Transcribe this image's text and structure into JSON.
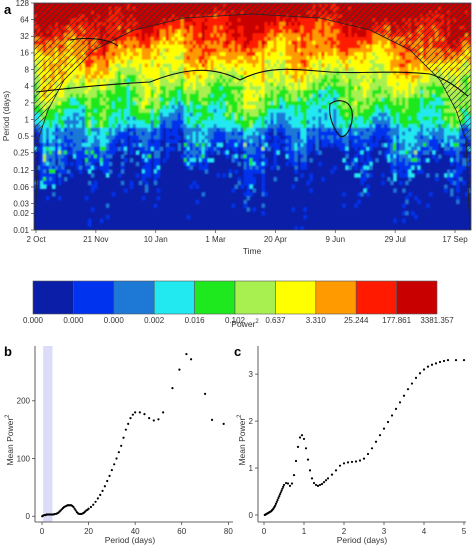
{
  "chart_data": [
    {
      "panel": "a",
      "type": "heatmap",
      "xlabel": "Time",
      "ylabel": "Period (days)",
      "x_ticks": [
        "2 Oct",
        "21 Nov",
        "10 Jan",
        "1 Mar",
        "20 Apr",
        "9 Jun",
        "29 Jul",
        "17 Sep"
      ],
      "y_ticks": [
        "0.01",
        "0.02",
        "0.03",
        "0.06",
        "0.12",
        "0.25",
        "0.5",
        "1",
        "2",
        "4",
        "8",
        "16",
        "32",
        "64",
        "128"
      ],
      "scale": "log2",
      "ylim": [
        0.01,
        128
      ],
      "cone_of_influence": "hatched"
    },
    {
      "type": "colorbar",
      "label": "Power",
      "label_superscript": "2",
      "colors": [
        "#0a1ea8",
        "#0033ee",
        "#1e78d6",
        "#22e8f0",
        "#1ee81e",
        "#a8f050",
        "#ffff00",
        "#ff9a00",
        "#ff1a00",
        "#c80000"
      ],
      "tick_labels": [
        "0.000",
        "0.000",
        "0.000",
        "0.002",
        "0.016",
        "0.102",
        "0.637",
        "3.310",
        "25.244",
        "177.861",
        "3381.357"
      ]
    },
    {
      "panel": "b",
      "type": "scatter",
      "xlabel": "Period (days)",
      "ylabel": "Mean Power",
      "ylabel_superscript": "2",
      "xlim": [
        -3,
        82
      ],
      "ylim": [
        -10,
        295
      ],
      "x_ticks": [
        "0",
        "20",
        "40",
        "60",
        "80"
      ],
      "y_ticks": [
        "0",
        "100",
        "200"
      ],
      "shaded_region": [
        0.5,
        4.5
      ],
      "x": [
        0.1,
        0.5,
        1,
        1.5,
        2,
        2.5,
        3,
        3.5,
        4,
        4.5,
        5,
        5.5,
        6,
        6.5,
        7,
        7.5,
        8,
        8.5,
        9,
        9.5,
        10,
        10.5,
        11,
        11.5,
        12,
        12.5,
        13,
        13.5,
        14,
        14.5,
        15,
        15.5,
        16,
        16.5,
        17,
        17.5,
        18,
        18.5,
        19,
        19.5,
        20,
        21,
        22,
        23,
        24,
        25,
        26,
        27,
        28,
        29,
        30,
        31,
        32,
        33,
        34,
        35,
        36,
        37,
        38,
        39,
        40,
        42,
        44,
        46,
        48,
        50,
        52,
        56,
        59,
        62,
        64,
        70,
        73,
        78
      ],
      "y": [
        0,
        1,
        2,
        2,
        3,
        3,
        3,
        3,
        3,
        3,
        3,
        4,
        4,
        5,
        6,
        8,
        10,
        12,
        14,
        16,
        17,
        18,
        19,
        19,
        19,
        19,
        18,
        16,
        13,
        10,
        7,
        5,
        4,
        4,
        4,
        5,
        6,
        8,
        10,
        11,
        13,
        16,
        20,
        25,
        31,
        37,
        44,
        52,
        61,
        70,
        80,
        90,
        100,
        111,
        122,
        136,
        150,
        160,
        170,
        176,
        180,
        180,
        177,
        170,
        166,
        168,
        180,
        222,
        254,
        281,
        272,
        212,
        167,
        160
      ]
    },
    {
      "panel": "c",
      "type": "scatter",
      "xlabel": "Period (days)",
      "ylabel": "Mean Power",
      "ylabel_superscript": "2",
      "xlim": [
        -0.15,
        5.05
      ],
      "ylim": [
        -0.15,
        3.6
      ],
      "x_ticks": [
        "0",
        "1",
        "2",
        "3",
        "4",
        "5"
      ],
      "y_ticks": [
        "0",
        "1",
        "2",
        "3"
      ],
      "x": [
        0.02,
        0.04,
        0.06,
        0.08,
        0.1,
        0.12,
        0.14,
        0.16,
        0.18,
        0.2,
        0.22,
        0.24,
        0.26,
        0.28,
        0.3,
        0.32,
        0.34,
        0.36,
        0.38,
        0.4,
        0.42,
        0.44,
        0.46,
        0.48,
        0.5,
        0.55,
        0.6,
        0.65,
        0.7,
        0.75,
        0.8,
        0.85,
        0.9,
        0.95,
        1.0,
        1.05,
        1.1,
        1.15,
        1.2,
        1.25,
        1.3,
        1.35,
        1.4,
        1.45,
        1.5,
        1.55,
        1.6,
        1.7,
        1.8,
        1.9,
        2.0,
        2.1,
        2.2,
        2.3,
        2.4,
        2.5,
        2.6,
        2.7,
        2.8,
        2.9,
        3.0,
        3.1,
        3.2,
        3.3,
        3.4,
        3.5,
        3.6,
        3.7,
        3.8,
        3.9,
        4.0,
        4.1,
        4.2,
        4.3,
        4.4,
        4.5,
        4.6,
        4.8,
        5.0
      ],
      "y": [
        0.0,
        0.01,
        0.02,
        0.03,
        0.04,
        0.05,
        0.06,
        0.07,
        0.08,
        0.1,
        0.12,
        0.14,
        0.17,
        0.2,
        0.24,
        0.28,
        0.32,
        0.36,
        0.4,
        0.44,
        0.48,
        0.52,
        0.56,
        0.6,
        0.64,
        0.68,
        0.67,
        0.62,
        0.67,
        0.85,
        1.15,
        1.45,
        1.65,
        1.7,
        1.62,
        1.42,
        1.18,
        0.95,
        0.78,
        0.68,
        0.64,
        0.62,
        0.64,
        0.66,
        0.7,
        0.74,
        0.78,
        0.86,
        0.95,
        1.05,
        1.1,
        1.12,
        1.13,
        1.14,
        1.16,
        1.2,
        1.3,
        1.42,
        1.56,
        1.7,
        1.84,
        1.98,
        2.12,
        2.26,
        2.4,
        2.54,
        2.68,
        2.8,
        2.92,
        3.02,
        3.1,
        3.16,
        3.2,
        3.23,
        3.26,
        3.28,
        3.3,
        3.3,
        3.3
      ]
    }
  ]
}
